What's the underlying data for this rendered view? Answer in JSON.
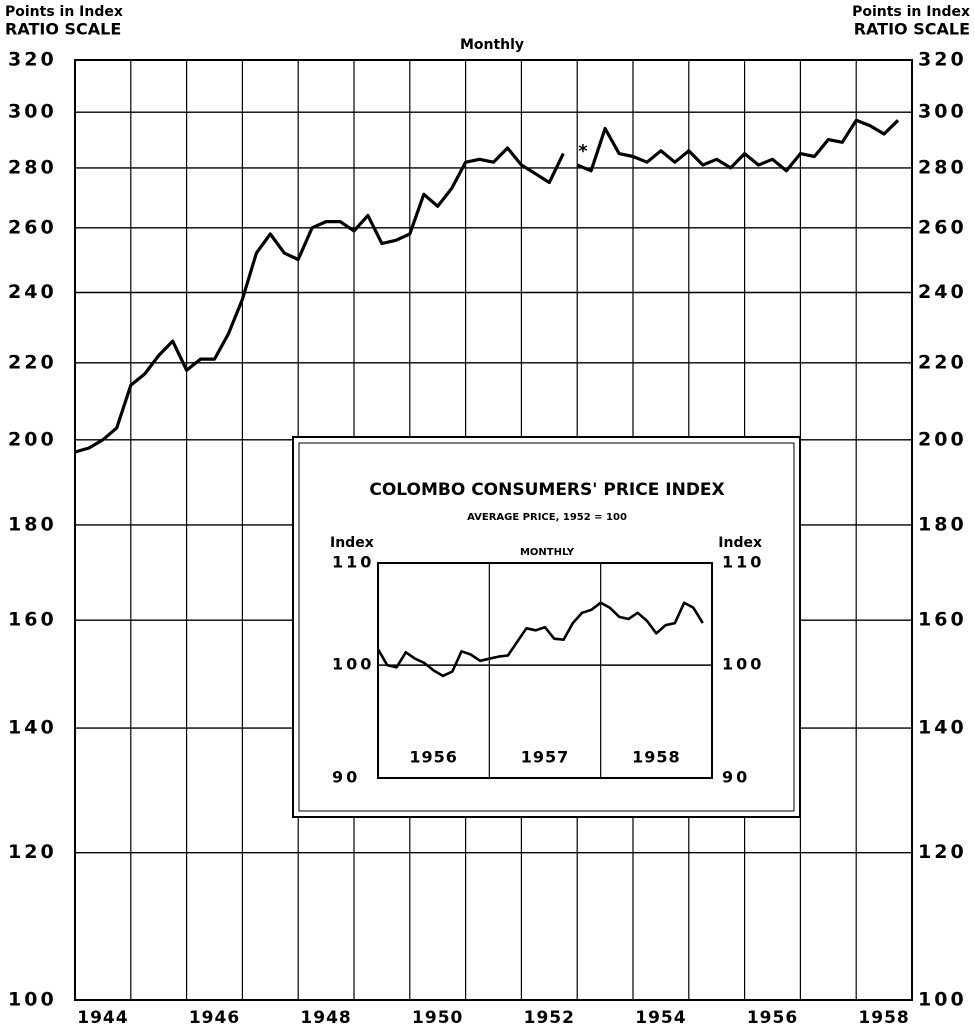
{
  "chart_data": [
    {
      "type": "line",
      "title": "Monthly",
      "axis_label_lines": [
        "Points in Index",
        "RATIO SCALE"
      ],
      "annotation": "*",
      "log_scale": true,
      "ylim": [
        100,
        320
      ],
      "yticks": [
        100,
        120,
        140,
        160,
        180,
        200,
        220,
        240,
        260,
        280,
        300,
        320
      ],
      "xlim": [
        1944,
        1959
      ],
      "xticks": [
        {
          "value": 1944.5,
          "label": "1944"
        },
        {
          "value": 1946.5,
          "label": "1946"
        },
        {
          "value": 1948.5,
          "label": "1948"
        },
        {
          "value": 1950.5,
          "label": "1950"
        },
        {
          "value": 1952.5,
          "label": "1952"
        },
        {
          "value": 1954.5,
          "label": "1954"
        },
        {
          "value": 1956.5,
          "label": "1956"
        },
        {
          "value": 1958.5,
          "label": "1958"
        }
      ],
      "xgrid": [
        1945,
        1946,
        1947,
        1948,
        1949,
        1950,
        1951,
        1952,
        1953,
        1954,
        1955,
        1956,
        1957,
        1958
      ],
      "grid": true,
      "series": [
        {
          "color": "#000000",
          "x": [
            1944,
            1944.25,
            1944.5,
            1944.75,
            1945,
            1945.25,
            1945.5,
            1945.75,
            1946,
            1946.25,
            1946.5,
            1946.75,
            1947,
            1947.25,
            1947.5,
            1947.75,
            1948,
            1948.25,
            1948.5,
            1948.75,
            1949,
            1949.25,
            1949.5,
            1949.75,
            1950,
            1950.25,
            1950.5,
            1950.75,
            1951,
            1951.25,
            1951.5,
            1951.75,
            1952,
            1952.25,
            1952.5,
            1952.75,
            1952.875,
            1953,
            1953.25,
            1953.5,
            1953.75,
            1954,
            1954.25,
            1954.5,
            1954.75,
            1955,
            1955.25,
            1955.5,
            1955.75,
            1956,
            1956.25,
            1956.5,
            1956.75,
            1957,
            1957.25,
            1957.5,
            1957.75,
            1958,
            1958.25,
            1958.5,
            1958.75
          ],
          "values": [
            197,
            198,
            200,
            203,
            214,
            217,
            222,
            226,
            218,
            221,
            221,
            228,
            238,
            252,
            258,
            252,
            250,
            260,
            262,
            262,
            259,
            264,
            255,
            256,
            258,
            271,
            267,
            273,
            282,
            283,
            282,
            287,
            281,
            278,
            275,
            285,
            null,
            281,
            279,
            294,
            285,
            284,
            282,
            286,
            282,
            286,
            281,
            283,
            280,
            285,
            281,
            283,
            279,
            285,
            284,
            290,
            289,
            297,
            295,
            292,
            297
          ]
        }
      ]
    },
    {
      "type": "line",
      "title": "COLOMBO CONSUMERS' PRICE INDEX",
      "subtitle": "AVERAGE PRICE, 1952 = 100",
      "period": "MONTHLY",
      "axis_label": "Index",
      "log_scale": true,
      "ylim": [
        90,
        110
      ],
      "yticks": [
        90,
        100,
        110
      ],
      "xlim": [
        1956,
        1959
      ],
      "xticks": [
        {
          "value": 1956.5,
          "label": "1956"
        },
        {
          "value": 1957.5,
          "label": "1957"
        },
        {
          "value": 1958.5,
          "label": "1958"
        }
      ],
      "xgrid": [
        1957,
        1958
      ],
      "grid": true,
      "series": [
        {
          "color": "#000000",
          "x": [
            1956,
            1956.083,
            1956.167,
            1956.25,
            1956.333,
            1956.417,
            1956.5,
            1956.583,
            1956.667,
            1956.75,
            1956.833,
            1956.917,
            1957,
            1957.083,
            1957.167,
            1957.25,
            1957.333,
            1957.417,
            1957.5,
            1957.583,
            1957.667,
            1957.75,
            1957.833,
            1957.917,
            1958,
            1958.083,
            1958.167,
            1958.25,
            1958.333,
            1958.417,
            1958.5,
            1958.583,
            1958.667,
            1958.75,
            1958.833,
            1958.917
          ],
          "values": [
            101.5,
            100,
            99.8,
            101.2,
            100.6,
            100.2,
            99.5,
            99,
            99.4,
            101.3,
            101,
            100.4,
            100.6,
            100.8,
            100.9,
            102.2,
            103.5,
            103.3,
            103.6,
            102.5,
            102.4,
            104,
            105,
            105.3,
            106,
            105.5,
            104.6,
            104.4,
            105,
            104.2,
            103,
            103.8,
            104,
            106,
            105.5,
            104
          ]
        }
      ]
    }
  ]
}
